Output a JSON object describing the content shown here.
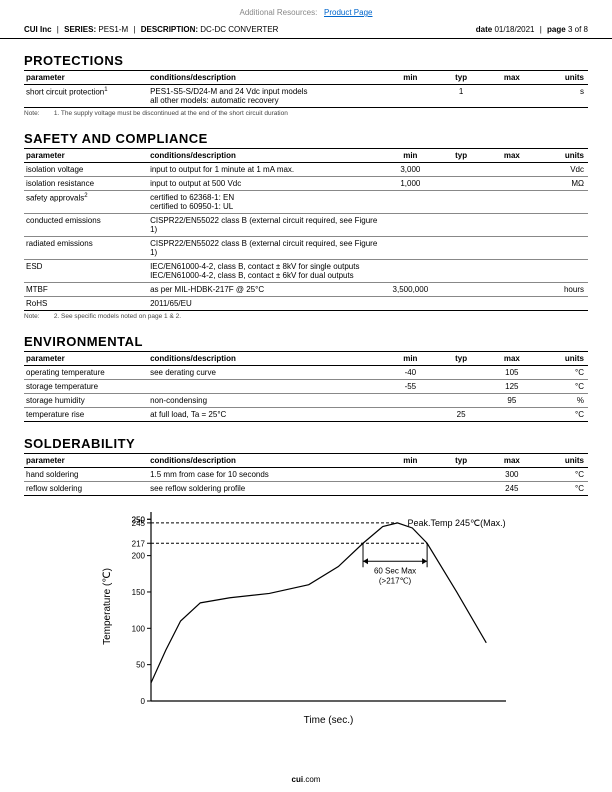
{
  "top": {
    "label": "Additional Resources:",
    "link": "Product Page"
  },
  "header": {
    "company": "CUI Inc",
    "series_label": "SERIES:",
    "series": "PES1-M",
    "desc_label": "DESCRIPTION:",
    "desc": "DC-DC CONVERTER",
    "date_label": "date",
    "date": "01/18/2021",
    "page_label": "page",
    "page": "3",
    "page_of": "of",
    "pages": "8"
  },
  "sections": {
    "protections": {
      "title": "PROTECTIONS",
      "head": {
        "param": "parameter",
        "cond": "conditions/description",
        "min": "min",
        "typ": "typ",
        "max": "max",
        "units": "units"
      },
      "rows": [
        {
          "param": "short circuit protection",
          "sup": "1",
          "cond": "PES1-S5-S/D24-M and 24 Vdc input models\nall other models: automatic recovery",
          "min": "",
          "typ": "1",
          "max": "",
          "units": "s"
        }
      ],
      "note": "Note:",
      "note_text": "1. The supply voltage must be discontinued at the end of the short circuit duration"
    },
    "safety": {
      "title": "SAFETY AND COMPLIANCE",
      "rows": [
        {
          "param": "isolation voltage",
          "cond": "input to output for 1 minute at 1 mA max.",
          "min": "3,000",
          "typ": "",
          "max": "",
          "units": "Vdc"
        },
        {
          "param": "isolation resistance",
          "cond": "input to output at 500 Vdc",
          "min": "1,000",
          "typ": "",
          "max": "",
          "units": "MΩ"
        },
        {
          "param": "safety approvals",
          "sup": "2",
          "cond": "certified to 62368-1: EN\ncertified to 60950-1: UL",
          "min": "",
          "typ": "",
          "max": "",
          "units": ""
        },
        {
          "param": "conducted emissions",
          "cond": "CISPR22/EN55022 class B (external circuit required, see Figure 1)",
          "min": "",
          "typ": "",
          "max": "",
          "units": ""
        },
        {
          "param": "radiated emissions",
          "cond": "CISPR22/EN55022 class B (external circuit required, see Figure 1)",
          "min": "",
          "typ": "",
          "max": "",
          "units": ""
        },
        {
          "param": "ESD",
          "cond": "IEC/EN61000-4-2, class B, contact ± 8kV for single outputs\nIEC/EN61000-4-2, class B, contact ± 6kV for dual outputs",
          "min": "",
          "typ": "",
          "max": "",
          "units": ""
        },
        {
          "param": "MTBF",
          "cond": "as per MIL-HDBK-217F @ 25°C",
          "min": "3,500,000",
          "typ": "",
          "max": "",
          "units": "hours"
        },
        {
          "param": "RoHS",
          "cond": "2011/65/EU",
          "min": "",
          "typ": "",
          "max": "",
          "units": ""
        }
      ],
      "note": "Note:",
      "note_text": "2. See specific models noted on page 1 & 2."
    },
    "env": {
      "title": "ENVIRONMENTAL",
      "rows": [
        {
          "param": "operating temperature",
          "cond": "see derating curve",
          "min": "-40",
          "typ": "",
          "max": "105",
          "units": "°C"
        },
        {
          "param": "storage temperature",
          "cond": "",
          "min": "-55",
          "typ": "",
          "max": "125",
          "units": "°C"
        },
        {
          "param": "storage humidity",
          "cond": "non-condensing",
          "min": "",
          "typ": "",
          "max": "95",
          "units": "%"
        },
        {
          "param": "temperature rise",
          "cond": "at full load, Ta = 25°C",
          "min": "",
          "typ": "25",
          "max": "",
          "units": "°C"
        }
      ]
    },
    "solder": {
      "title": "SOLDERABILITY",
      "rows": [
        {
          "param": "hand soldering",
          "cond": "1.5 mm from case for 10 seconds",
          "min": "",
          "typ": "",
          "max": "300",
          "units": "°C"
        },
        {
          "param": "reflow soldering",
          "cond": "see reflow soldering profile",
          "min": "",
          "typ": "",
          "max": "245",
          "units": "°C"
        }
      ]
    }
  },
  "chart": {
    "type": "line",
    "xlabel": "Time (sec.)",
    "ylabel": "Temperature (℃)",
    "ylim": [
      0,
      260
    ],
    "ytick_step": 50,
    "extra_yticks": [
      217,
      245,
      250
    ],
    "peak_label": "Peak.Temp 245℃(Max.)",
    "span_label": "60 Sec Max\n(>217℃)",
    "background_color": "#ffffff",
    "axis_color": "#000000",
    "line_color": "#000000",
    "dash_color": "#000000",
    "line_width": 1.2,
    "label_fontsize": 10,
    "curve": [
      [
        0,
        25
      ],
      [
        15,
        70
      ],
      [
        30,
        110
      ],
      [
        50,
        135
      ],
      [
        80,
        142
      ],
      [
        120,
        148
      ],
      [
        160,
        160
      ],
      [
        190,
        185
      ],
      [
        215,
        217
      ],
      [
        235,
        240
      ],
      [
        250,
        245
      ],
      [
        265,
        238
      ],
      [
        280,
        217
      ],
      [
        310,
        150
      ],
      [
        340,
        80
      ]
    ],
    "dash1_y": 245,
    "dash1_x_end": 250,
    "dash2_y": 217,
    "dash2_x_end": 280,
    "span_x1": 215,
    "span_x2": 280
  },
  "footer": {
    "brand": "cui",
    "suffix": ".com"
  }
}
